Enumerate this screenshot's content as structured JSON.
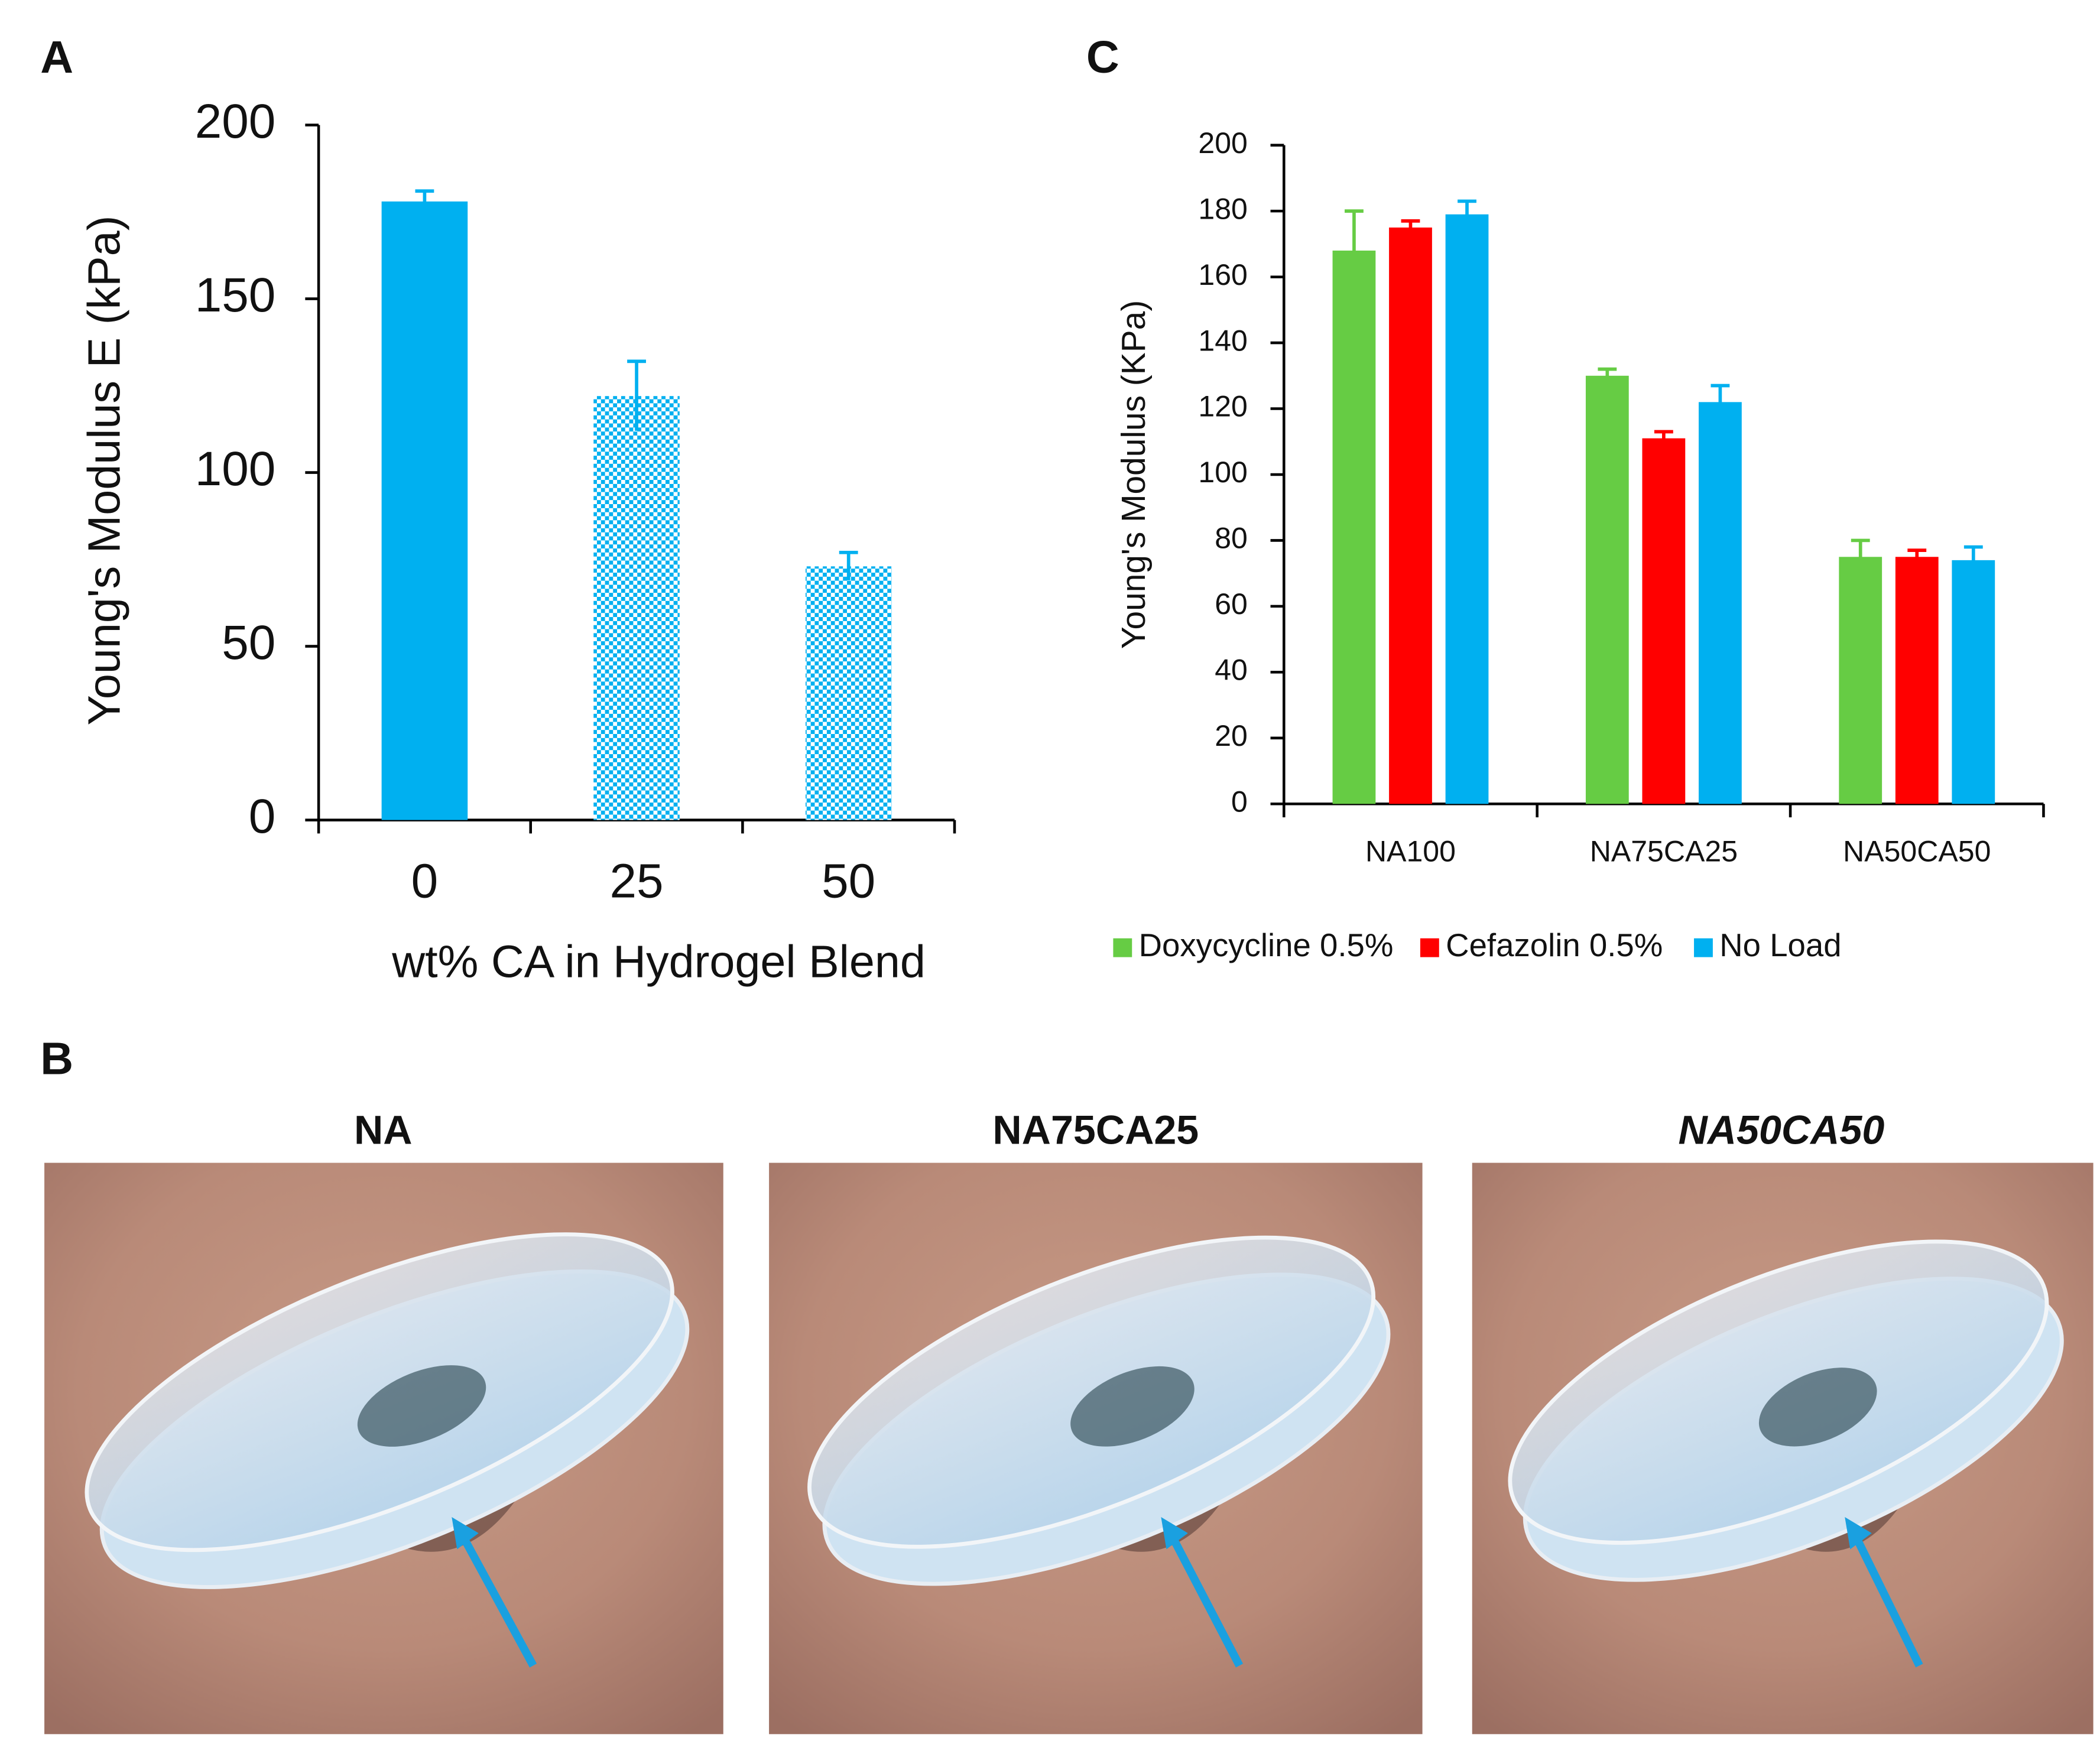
{
  "panel_labels": [
    "A",
    "B",
    "C"
  ],
  "photos": [
    {
      "caption": "NA"
    },
    {
      "caption": "NA75CA25"
    },
    {
      "caption": "NA50CA50"
    }
  ],
  "chart_data": [
    {
      "type": "bar",
      "categories": [
        "0",
        "25",
        "50"
      ],
      "values": [
        178,
        122,
        73
      ],
      "errors": [
        3,
        10,
        4
      ],
      "color": "#00b0f0",
      "patterns": [
        "solid",
        "checker",
        "checker"
      ],
      "x_label": "wt% CA in Hydrogel Blend",
      "y_label": "Young's Modulus E (kPa)",
      "ylim": [
        0,
        200
      ],
      "yticks": [
        0,
        50,
        100,
        150,
        200
      ]
    },
    {
      "type": "bar",
      "categories": [
        "NA100",
        "NA75CA25",
        "NA50CA50"
      ],
      "series": [
        {
          "name": "Doxycycline 0.5%",
          "color": "#66cc44",
          "values": [
            168,
            130,
            75
          ],
          "errors": [
            12,
            2,
            5
          ]
        },
        {
          "name": "Cefazolin 0.5%",
          "color": "#ff0000",
          "values": [
            175,
            111,
            75
          ],
          "errors": [
            2,
            2,
            2
          ]
        },
        {
          "name": "No Load",
          "color": "#00b0f0",
          "values": [
            179,
            122,
            74
          ],
          "errors": [
            4,
            5,
            4
          ]
        }
      ],
      "y_label": "Young's Modulus (KPa)",
      "legend": "bottom",
      "ylim": [
        0,
        200
      ],
      "yticks": [
        0,
        20,
        40,
        60,
        80,
        100,
        120,
        140,
        160,
        180,
        200
      ]
    }
  ]
}
